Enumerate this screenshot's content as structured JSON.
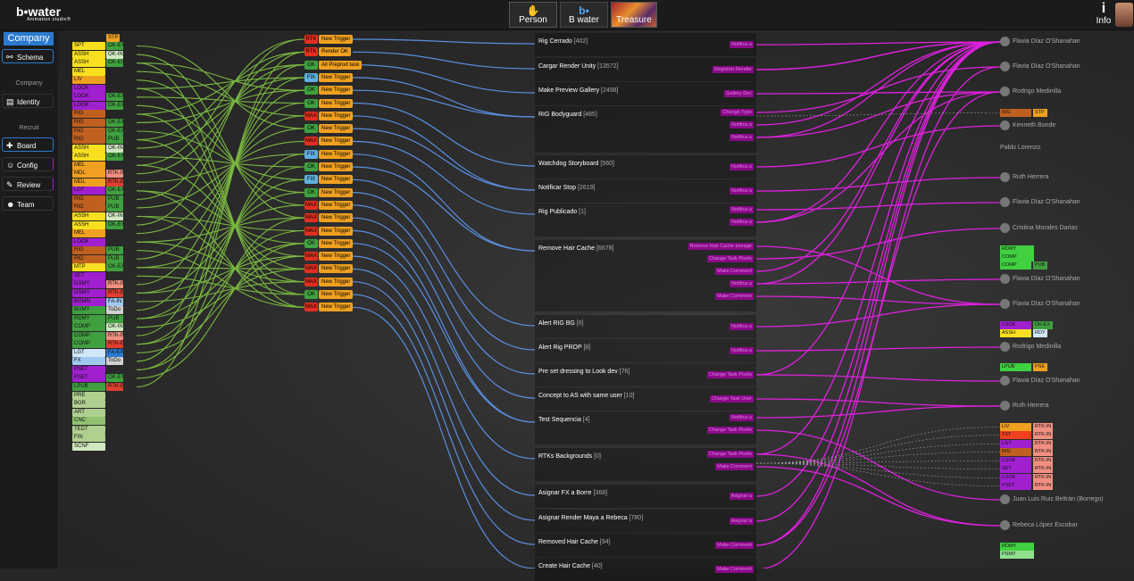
{
  "topbar": {
    "logo": "b•water",
    "logo_sub": "Animation studio®",
    "tabs": [
      {
        "label": "Person",
        "icon": "hand-icon"
      },
      {
        "label": "B water",
        "icon": "b-logo-icon"
      },
      {
        "label": "Treasure",
        "icon": "treasure-image"
      }
    ],
    "info_label": "Info"
  },
  "sidebar": {
    "company_label": "Company",
    "schema_label": "Schema",
    "section_company": "Company",
    "identity_label": "Identity",
    "section_recruit": "Recruit",
    "board_label": "Board",
    "config_label": "Config",
    "review_label": "Review",
    "team_label": "Team"
  },
  "colors": {
    "blue_link": "#5a8fe0",
    "green_link": "#7ab840",
    "magenta_link": "#e020e0",
    "trigger_orange": "#f0a020"
  },
  "left_tags": [
    {
      "label": "STP",
      "state": "",
      "c": "#f0a020",
      "sc": ""
    },
    {
      "label": "SPT",
      "state": "OK-EX",
      "c": "#f8e020",
      "sc": "#40a040"
    },
    {
      "label": "ASSH",
      "state": "OK-IN",
      "c": "#f8e020",
      "sc": "#cfe8c0"
    },
    {
      "label": "ASSH",
      "state": "OK-EX",
      "c": "#f8e020",
      "sc": "#40a040"
    },
    {
      "label": "MEL",
      "state": "",
      "c": "#f8e020",
      "sc": ""
    },
    {
      "label": "LIV",
      "state": "",
      "c": "#f0a020",
      "sc": ""
    },
    {
      "label": "LOOK",
      "state": "",
      "c": "#a020d0",
      "sc": ""
    },
    {
      "label": "LOOK",
      "state": "OK-EX",
      "c": "#a020d0",
      "sc": "#40a040"
    },
    {
      "label": "LOOK",
      "state": "OK-EX",
      "c": "#a020d0",
      "sc": "#40a040"
    },
    {
      "label": "RIG",
      "state": "",
      "c": "#c06020",
      "sc": ""
    },
    {
      "label": "RIG",
      "state": "OK-EX",
      "c": "#c06020",
      "sc": "#40a040"
    },
    {
      "label": "RIG",
      "state": "OK-EX",
      "c": "#c06020",
      "sc": "#40a040"
    },
    {
      "label": "RIG",
      "state": "PUB",
      "c": "#c06020",
      "sc": "#40a040"
    },
    {
      "label": "ASSH",
      "state": "OK-IN",
      "c": "#f8e020",
      "sc": "#cfe8c0"
    },
    {
      "label": "ASSH",
      "state": "OK-EX",
      "c": "#f8e020",
      "sc": "#40a040"
    },
    {
      "label": "MEL",
      "state": "",
      "c": "#f0a020",
      "sc": ""
    },
    {
      "label": "MDL",
      "state": "RTK-IN",
      "c": "#f0a020",
      "sc": "#f09080"
    },
    {
      "label": "MDL",
      "state": "RTK-EX",
      "c": "#f0a020",
      "sc": "#e04030"
    },
    {
      "label": "LGT",
      "state": "OK-EX",
      "c": "#a020d0",
      "sc": "#40a040"
    },
    {
      "label": "RIG",
      "state": "PUB",
      "c": "#c06020",
      "sc": "#40a040"
    },
    {
      "label": "RIG",
      "state": "PUB",
      "c": "#c06020",
      "sc": "#40a040"
    },
    {
      "label": "ASSH",
      "state": "OK-IN",
      "c": "#f8e020",
      "sc": "#cfe8c0"
    },
    {
      "label": "ASSH",
      "state": "OK-EX",
      "c": "#f8e020",
      "sc": "#40a040"
    },
    {
      "label": "MEL",
      "state": "",
      "c": "#f0a020",
      "sc": ""
    },
    {
      "label": "LOOK",
      "state": "",
      "c": "#a020d0",
      "sc": ""
    },
    {
      "label": "RIG",
      "state": "PUB",
      "c": "#c06020",
      "sc": "#40a040"
    },
    {
      "label": "RIG",
      "state": "PUB",
      "c": "#c06020",
      "sc": "#40a040"
    },
    {
      "label": "MTP",
      "state": "OK-EX",
      "c": "#f8e020",
      "sc": "#40a040"
    },
    {
      "label": "SET",
      "state": "",
      "c": "#a020d0",
      "sc": ""
    },
    {
      "label": "DSMY",
      "state": "RTK-IN",
      "c": "#a020d0",
      "sc": "#f09080"
    },
    {
      "label": "DSMY",
      "state": "RTK-EX",
      "c": "#a020d0",
      "sc": "#e04030"
    },
    {
      "label": "BGMN",
      "state": "FA-IN",
      "c": "#a020d0",
      "sc": "#a0c8f0"
    },
    {
      "label": "BGMY",
      "state": "ToDo",
      "c": "#40a040",
      "sc": "#d0d0d0"
    },
    {
      "label": "RDMY",
      "state": "PUB",
      "c": "#40a040",
      "sc": "#40a040"
    },
    {
      "label": "COMP",
      "state": "OK-IN",
      "c": "#40a040",
      "sc": "#cfe8c0"
    },
    {
      "label": "COMP",
      "state": "RTK-IN",
      "c": "#40a040",
      "sc": "#f09080"
    },
    {
      "label": "COMP",
      "state": "RTK-EX",
      "c": "#40a040",
      "sc": "#e04030"
    },
    {
      "label": "LGT",
      "state": "FA-EX",
      "c": "#d0e8f8",
      "sc": "#2a7ad0"
    },
    {
      "label": "FX",
      "state": "ToDo",
      "c": "#a0c8f0",
      "sc": "#d0d0d0"
    },
    {
      "label": "PSET",
      "state": "",
      "c": "#a020d0",
      "sc": ""
    },
    {
      "label": "PSET",
      "state": "OK-EX",
      "c": "#a020d0",
      "sc": "#40a040"
    },
    {
      "label": "LPUB",
      "state": "RTK-EX",
      "c": "#40a040",
      "sc": "#e04030"
    },
    {
      "label": "PRE",
      "state": "",
      "c": "#b0d090",
      "sc": ""
    },
    {
      "label": "BGR",
      "state": "",
      "c": "#b0d090",
      "sc": ""
    },
    {
      "label": "ART",
      "state": "",
      "c": "#b0d090",
      "sc": ""
    },
    {
      "label": "CNC",
      "state": "",
      "c": "#90c070",
      "sc": ""
    },
    {
      "label": "TEDT",
      "state": "",
      "c": "#b0d090",
      "sc": ""
    },
    {
      "label": "FIN",
      "state": "",
      "c": "#b0d090",
      "sc": ""
    },
    {
      "label": "SCNF",
      "state": "",
      "c": "#d0e8c0",
      "sc": ""
    }
  ],
  "triggers": [
    {
      "key": "RTK",
      "label": "New Trigger",
      "kc": "#e03020"
    },
    {
      "key": "RTK",
      "label": "Render OK",
      "kc": "#e03020"
    },
    {
      "key": "OK",
      "label": "All Preprod task",
      "kc": "#40a040"
    },
    {
      "key": "FIX",
      "label": "New Trigger",
      "kc": "#60b0e0"
    },
    {
      "key": "OK",
      "label": "New Trigger",
      "kc": "#40a040"
    },
    {
      "key": "OK",
      "label": "New Trigger",
      "kc": "#40a040"
    },
    {
      "key": "MAX",
      "label": "New Trigger",
      "kc": "#e03020"
    },
    {
      "key": "OK",
      "label": "New Trigger",
      "kc": "#40a040"
    },
    {
      "key": "MAX",
      "label": "New Trigger",
      "kc": "#e03020"
    },
    {
      "key": "FIX",
      "label": "New Trigger",
      "kc": "#60b0e0"
    },
    {
      "key": "OK",
      "label": "New Trigger",
      "kc": "#40a040"
    },
    {
      "key": "FIX",
      "label": "New Trigger",
      "kc": "#60b0e0"
    },
    {
      "key": "OK",
      "label": "New Trigger",
      "kc": "#40a040"
    },
    {
      "key": "MAX",
      "label": "New Trigger",
      "kc": "#e03020"
    },
    {
      "key": "MAX",
      "label": "New Trigger",
      "kc": "#e03020"
    },
    {
      "key": "MAX",
      "label": "New Trigger",
      "kc": "#e03020"
    },
    {
      "key": "OK",
      "label": "New Trigger",
      "kc": "#40a040"
    },
    {
      "key": "MAX",
      "label": "New Trigger",
      "kc": "#e03020"
    },
    {
      "key": "MAX",
      "label": "New Trigger",
      "kc": "#e03020"
    },
    {
      "key": "MAX",
      "label": "New Trigger",
      "kc": "#e03020"
    },
    {
      "key": "OK",
      "label": "New Trigger",
      "kc": "#40a040"
    },
    {
      "key": "MAX",
      "label": "New Trigger",
      "kc": "#e03020"
    }
  ],
  "tasks": [
    {
      "name": "Rig Cerrado",
      "count": "[402]",
      "subs": [
        "Notifica a"
      ]
    },
    {
      "name": "Cargar Render Unity",
      "count": "[13572]",
      "subs": [
        "Registrar Render"
      ]
    },
    {
      "name": "Make Preview Gallery",
      "count": "[2498]",
      "subs": [
        "Gallery Doc"
      ]
    },
    {
      "name": "RIG Bodyguard",
      "count": "[485]",
      "subs": [
        "Change Type",
        "Notifica a",
        "Notifica a"
      ]
    },
    {
      "name": "Watchdog Storyboard",
      "count": "[560]",
      "subs": [
        "Notifica a"
      ]
    },
    {
      "name": "Notificar Stop",
      "count": "[2619]",
      "subs": [
        "Notifica a"
      ]
    },
    {
      "name": "Rig Publicado",
      "count": "[1]",
      "subs": [
        "Notifica a",
        "Notifica a"
      ]
    },
    {
      "name": "Remove Hair Cache",
      "count": "[6678]",
      "subs": [
        "Remove Hair Cache storage",
        "Change Task Pixels",
        "Make Comment",
        "Notifica a",
        "Make Comment"
      ]
    },
    {
      "name": "Alert RIG BG",
      "count": "[6]",
      "subs": [
        "Notifica a"
      ]
    },
    {
      "name": "Alert Rig PROP",
      "count": "[8]",
      "subs": [
        "Notifica a"
      ]
    },
    {
      "name": "Pre set dressing to Look dev",
      "count": "[76]",
      "subs": [
        "Change Task Pixels"
      ]
    },
    {
      "name": "Concept to AS with same user",
      "count": "[10]",
      "subs": [
        "Change Task User"
      ]
    },
    {
      "name": "Test Sequencia",
      "count": "[4]",
      "subs": [
        "Notifica a",
        "Change Task Pixels"
      ]
    },
    {
      "name": "RTKs Backgrounds",
      "count": "[0]",
      "subs": [
        "Change Task Pixels",
        "Make Comment"
      ]
    },
    {
      "name": "Asignar FX a Borre",
      "count": "[368]",
      "subs": [
        "Asignar a"
      ]
    },
    {
      "name": "Asignar Render Maya a Rebeca",
      "count": "[780]",
      "subs": [
        "Asignar a"
      ]
    },
    {
      "name": "Removed Hair Cache",
      "count": "[94]",
      "subs": [
        "Make Comment"
      ]
    },
    {
      "name": "Create Hair Cache",
      "count": "[40]",
      "subs": [
        "Make Comment"
      ]
    }
  ],
  "people": [
    {
      "name": "Flavia Díaz O'Shanahan"
    },
    {
      "name": "Flavia Díaz O'Shanahan"
    },
    {
      "name": "Rodrigo Medinilla"
    },
    {
      "name": "Kenneth Bonde"
    },
    {
      "name": "Pablo Lorenzo"
    },
    {
      "name": "Ruth Herrera"
    },
    {
      "name": "Flavia Díaz O'Shanahan"
    },
    {
      "name": "Cristina Morales Darias"
    },
    {
      "name": "Flavia Díaz O'Shanahan"
    },
    {
      "name": "Flavia Díaz O'Shanahan"
    },
    {
      "name": "Rodrigo Medinilla"
    },
    {
      "name": "Flavia Díaz O'Shanahan"
    },
    {
      "name": "Ruth Herrera"
    },
    {
      "name": "Juan Luis Ruiz Beltrán (Borrego)"
    },
    {
      "name": "Rebeca López Escobar"
    }
  ],
  "person_tags": [
    {
      "label": "RIG",
      "state": "STP",
      "c": "#c06020",
      "sc": "#f0a020"
    },
    {
      "label": "RDMY",
      "state": "",
      "c": "#40d040",
      "sc": ""
    },
    {
      "label": "COMP",
      "state": "",
      "c": "#40d040",
      "sc": ""
    },
    {
      "label": "COMP",
      "state": "PUB",
      "c": "#40d040",
      "sc": "#40a040"
    },
    {
      "label": "LOOK",
      "state": "OK-EX",
      "c": "#a020d0",
      "sc": "#40a040"
    },
    {
      "label": "ASSH",
      "state": "RDY",
      "c": "#f8e020",
      "sc": "#d0e8f8"
    },
    {
      "label": "LPUB",
      "state": "PSE",
      "c": "#40d040",
      "sc": "#f0a020"
    },
    {
      "label": "LIV",
      "state": "RTK-IN",
      "c": "#f0a020",
      "sc": "#f09080"
    },
    {
      "label": "TXT",
      "state": "RTK-IN",
      "c": "#f04020",
      "sc": "#f09080"
    },
    {
      "label": "LGT",
      "state": "RTK-IN",
      "c": "#a020d0",
      "sc": "#f09080"
    },
    {
      "label": "RIG",
      "state": "RTK-IN",
      "c": "#c06020",
      "sc": "#f09080"
    },
    {
      "label": "LOOK",
      "state": "RTK-IN",
      "c": "#a020d0",
      "sc": "#f09080"
    },
    {
      "label": "SET",
      "state": "RTK-IN",
      "c": "#a020d0",
      "sc": "#f09080"
    },
    {
      "label": "LOOK",
      "state": "RTK-IN",
      "c": "#a020d0",
      "sc": "#f09080"
    },
    {
      "label": "PSET",
      "state": "RTK-IN",
      "c": "#a020d0",
      "sc": "#f09080"
    },
    {
      "label": "RDMY",
      "state": "",
      "c": "#40d040",
      "sc": ""
    },
    {
      "label": "PSMY",
      "state": "",
      "c": "#90e090",
      "sc": ""
    }
  ]
}
